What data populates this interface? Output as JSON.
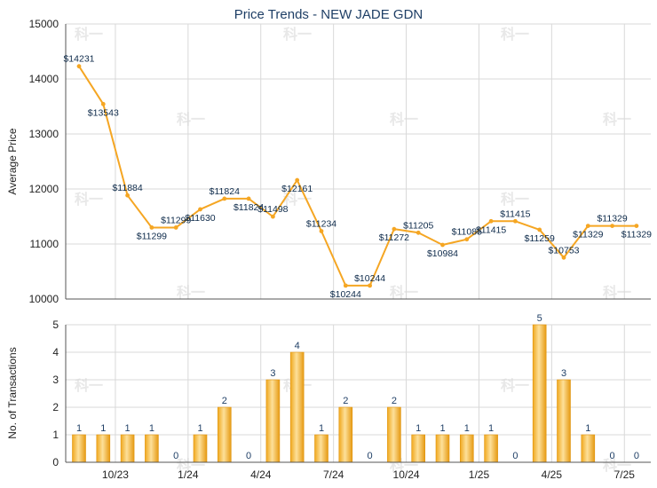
{
  "chart_data": [
    {
      "type": "line",
      "title": "Price Trends - NEW JADE GDN",
      "ylabel": "Average Price",
      "ylim": [
        10000,
        15000
      ],
      "yticks": [
        10000,
        11000,
        12000,
        13000,
        14000,
        15000
      ],
      "series": [
        {
          "values": [
            14231,
            13543,
            11884,
            11299,
            11299,
            11630,
            11824,
            11824,
            11498,
            12161,
            11234,
            10244,
            10244,
            11272,
            11205,
            10984,
            11085,
            11415,
            11415,
            11259,
            10753,
            11329,
            11329,
            11329
          ],
          "labels": [
            "$14231",
            "$13543",
            "$11884",
            "$11299",
            "$11299",
            "$11630",
            "$11824",
            "$11824",
            "$11498",
            "$12161",
            "$11234",
            "$10244",
            "$10244",
            "$11272",
            "$11205",
            "$10984",
            "$11085",
            "$11415",
            "$11415",
            "$11259",
            "$10753",
            "$11329",
            "$11329",
            "$11329"
          ],
          "color": "#f5a623"
        }
      ],
      "grid": true
    },
    {
      "type": "bar",
      "ylabel": "No. of Transactions",
      "ylim": [
        0,
        5
      ],
      "yticks": [
        0,
        1,
        2,
        3,
        4,
        5
      ],
      "xtick_labels": [
        "10/23",
        "1/24",
        "4/24",
        "7/24",
        "10/24",
        "1/25",
        "4/25",
        "7/25"
      ],
      "values": [
        1,
        1,
        1,
        1,
        0,
        1,
        2,
        0,
        3,
        4,
        1,
        2,
        0,
        2,
        1,
        1,
        1,
        1,
        0,
        5,
        3,
        1,
        0,
        0
      ],
      "color": "#f5a623",
      "grid": true
    }
  ],
  "watermark": "科一"
}
